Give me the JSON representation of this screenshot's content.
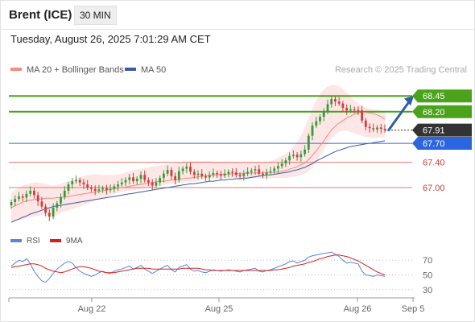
{
  "header": {
    "symbol": "Brent (ICE)",
    "timeframe": "30 MIN"
  },
  "datetime": "Tuesday, August 26, 2025 7:01:29 AM CET",
  "legend": {
    "ma20_label": "MA 20 + Bollinger Bands",
    "ma50_label": "MA 50",
    "credit": "Research © 2025 Trading Central"
  },
  "rsi_legend": {
    "rsi_label": "RSI",
    "ma_label": "9MA"
  },
  "colors": {
    "up": "#3a9a3a",
    "down": "#d23c3c",
    "ma20": "#f28b82",
    "bollinger": "#fde2e2",
    "ma50": "#3a5ba8",
    "resistance": "#4aa31a",
    "support_blue": "#2b66e0",
    "support_red": "#e8796f",
    "current": "#333333",
    "arrow": "#2d5fa8",
    "rsi": "#5b84d6",
    "rsi_ma": "#d62020"
  },
  "chart_data": [
    {
      "type": "candlestick",
      "x_dates": [
        "Aug 22",
        "Aug 25",
        "Aug 26",
        "Sep 5"
      ],
      "ylim": [
        66.35,
        68.72
      ],
      "levels": [
        {
          "value": 68.45,
          "label": "68.45",
          "kind": "resistance"
        },
        {
          "value": 68.2,
          "label": "68.20",
          "kind": "resistance"
        },
        {
          "value": 67.91,
          "label": "67.91",
          "kind": "current"
        },
        {
          "value": 67.7,
          "label": "67.70",
          "kind": "support-blue"
        },
        {
          "value": 67.4,
          "label": "67.40",
          "kind": "support-red"
        },
        {
          "value": 67.0,
          "label": "67.00",
          "kind": "support-red"
        }
      ],
      "candles_close": [
        66.77,
        66.82,
        66.86,
        66.84,
        66.9,
        66.95,
        66.88,
        66.78,
        66.7,
        66.6,
        66.54,
        66.68,
        66.75,
        66.85,
        66.95,
        67.05,
        67.1,
        67.12,
        67.08,
        67.05,
        67.0,
        66.98,
        66.95,
        66.97,
        66.99,
        66.96,
        66.98,
        67.02,
        67.05,
        67.08,
        67.12,
        67.16,
        67.1,
        67.14,
        67.2,
        67.12,
        67.08,
        67.03,
        67.08,
        67.15,
        67.22,
        67.28,
        67.18,
        67.12,
        67.26,
        67.3,
        67.33,
        67.25,
        67.2,
        67.22,
        67.18,
        67.16,
        67.2,
        67.23,
        67.21,
        67.19,
        67.22,
        67.25,
        67.24,
        67.2,
        67.18,
        67.22,
        67.25,
        67.27,
        67.29,
        67.22,
        67.2,
        67.24,
        67.26,
        67.3,
        67.34,
        67.38,
        67.43,
        67.5,
        67.52,
        67.48,
        67.53,
        67.6,
        67.82,
        67.98,
        68.05,
        68.12,
        68.2,
        68.32,
        68.4,
        68.36,
        68.33,
        68.26,
        68.22,
        68.24,
        68.23,
        68.22,
        68.06,
        67.96,
        67.94,
        67.92,
        67.95,
        67.93,
        67.91
      ],
      "ma20": [
        66.68,
        66.71,
        66.74,
        66.77,
        66.79,
        66.8,
        66.81,
        66.82,
        66.82,
        66.83,
        66.83,
        66.83,
        66.84,
        66.84,
        66.85,
        66.86,
        66.87,
        66.88,
        66.89,
        66.9,
        66.91,
        66.92,
        66.93,
        66.94,
        66.95,
        66.96,
        66.97,
        66.98,
        66.99,
        67.0,
        67.01,
        67.02,
        67.03,
        67.04,
        67.05,
        67.06,
        67.07,
        67.08,
        67.09,
        67.1,
        67.1,
        67.11,
        67.12,
        67.12,
        67.13,
        67.14,
        67.15,
        67.15,
        67.16,
        67.17,
        67.18,
        67.19,
        67.19,
        67.2,
        67.2,
        67.21,
        67.21,
        67.21,
        67.22,
        67.22,
        67.22,
        67.22,
        67.23,
        67.23,
        67.23,
        67.23,
        67.23,
        67.24,
        67.24,
        67.24,
        67.25,
        67.26,
        67.27,
        67.29,
        67.31,
        67.33,
        67.36,
        67.39,
        67.44,
        67.51,
        67.58,
        67.66,
        67.74,
        67.83,
        67.91,
        67.97,
        68.02,
        68.06,
        68.1,
        68.13,
        68.16,
        68.18,
        68.19,
        68.19,
        68.18,
        68.17,
        68.15,
        68.12,
        68.08
      ],
      "bb_upper": [
        66.92,
        66.96,
        67.0,
        67.03,
        67.05,
        67.07,
        67.08,
        67.08,
        67.07,
        67.06,
        67.04,
        67.03,
        67.04,
        67.06,
        67.08,
        67.1,
        67.12,
        67.14,
        67.16,
        67.18,
        67.2,
        67.21,
        67.21,
        67.21,
        67.2,
        67.2,
        67.2,
        67.2,
        67.21,
        67.22,
        67.24,
        67.26,
        67.28,
        67.29,
        67.3,
        67.31,
        67.32,
        67.33,
        67.34,
        67.35,
        67.36,
        67.37,
        67.38,
        67.39,
        67.4,
        67.41,
        67.42,
        67.42,
        67.42,
        67.42,
        67.42,
        67.42,
        67.42,
        67.41,
        67.41,
        67.4,
        67.4,
        67.4,
        67.4,
        67.4,
        67.4,
        67.4,
        67.4,
        67.4,
        67.4,
        67.4,
        67.4,
        67.41,
        67.42,
        67.44,
        67.47,
        67.5,
        67.53,
        67.58,
        67.65,
        67.72,
        67.82,
        67.95,
        68.1,
        68.25,
        68.38,
        68.48,
        68.55,
        68.6,
        68.62,
        68.62,
        68.6,
        68.56,
        68.5,
        68.44,
        68.38,
        68.33,
        68.3,
        68.27,
        68.25,
        68.24,
        68.23,
        68.22,
        68.2
      ],
      "bb_lower": [
        66.44,
        66.46,
        66.48,
        66.5,
        66.52,
        66.53,
        66.54,
        66.55,
        66.56,
        66.56,
        66.56,
        66.56,
        66.57,
        66.6,
        66.62,
        66.64,
        66.66,
        66.68,
        66.7,
        66.72,
        66.74,
        66.77,
        66.8,
        66.82,
        66.84,
        66.86,
        66.88,
        66.9,
        66.92,
        66.93,
        66.94,
        66.95,
        66.96,
        66.97,
        66.98,
        66.99,
        67.0,
        67.01,
        67.02,
        67.03,
        67.04,
        67.05,
        67.06,
        67.06,
        67.07,
        67.08,
        67.09,
        67.09,
        67.1,
        67.11,
        67.12,
        67.13,
        67.13,
        67.14,
        67.14,
        67.15,
        67.15,
        67.15,
        67.15,
        67.15,
        67.15,
        67.15,
        67.15,
        67.15,
        67.15,
        67.15,
        67.15,
        67.15,
        67.15,
        67.15,
        67.15,
        67.15,
        67.15,
        67.16,
        67.17,
        67.18,
        67.2,
        67.22,
        67.26,
        67.32,
        67.4,
        67.5,
        67.6,
        67.7,
        67.78,
        67.84,
        67.88,
        67.9,
        67.9,
        67.88,
        67.86,
        67.84,
        67.82,
        67.8,
        67.79,
        67.79,
        67.79,
        67.8,
        67.8
      ],
      "ma50": [
        66.45,
        66.48,
        66.5,
        66.53,
        66.55,
        66.58,
        66.6,
        66.62,
        66.64,
        66.66,
        66.68,
        66.7,
        66.71,
        66.72,
        66.73,
        66.74,
        66.75,
        66.76,
        66.77,
        66.78,
        66.79,
        66.8,
        66.81,
        66.82,
        66.83,
        66.84,
        66.85,
        66.86,
        66.87,
        66.88,
        66.89,
        66.9,
        66.91,
        66.92,
        66.93,
        66.94,
        66.95,
        66.96,
        66.97,
        66.98,
        66.99,
        67.0,
        67.01,
        67.02,
        67.03,
        67.04,
        67.05,
        67.06,
        67.06,
        67.07,
        67.08,
        67.09,
        67.1,
        67.1,
        67.11,
        67.12,
        67.12,
        67.13,
        67.13,
        67.14,
        67.14,
        67.15,
        67.15,
        67.16,
        67.17,
        67.18,
        67.19,
        67.2,
        67.2,
        67.21,
        67.22,
        67.23,
        67.24,
        67.25,
        67.27,
        67.28,
        67.3,
        67.32,
        67.35,
        67.38,
        67.42,
        67.45,
        67.48,
        67.51,
        67.54,
        67.57,
        67.59,
        67.61,
        67.63,
        67.65,
        67.66,
        67.67,
        67.68,
        67.69,
        67.7,
        67.71,
        67.72,
        67.73,
        67.74
      ]
    },
    {
      "type": "line",
      "name": "RSI",
      "yticks": [
        30,
        50,
        70
      ],
      "ylim": [
        20,
        80
      ],
      "series": [
        {
          "name": "RSI",
          "values": [
            62,
            66,
            70,
            68,
            72,
            65,
            55,
            48,
            42,
            40,
            45,
            52,
            58,
            62,
            66,
            68,
            66,
            60,
            55,
            52,
            50,
            48,
            50,
            53,
            55,
            53,
            52,
            55,
            57,
            58,
            60,
            62,
            58,
            60,
            63,
            58,
            55,
            52,
            55,
            58,
            61,
            63,
            57,
            54,
            60,
            62,
            64,
            58,
            55,
            56,
            54,
            53,
            55,
            57,
            56,
            55,
            56,
            57,
            56,
            55,
            54,
            56,
            57,
            58,
            59,
            55,
            54,
            56,
            57,
            59,
            61,
            63,
            65,
            68,
            69,
            66,
            68,
            70,
            74,
            76,
            77,
            78,
            79,
            80,
            81,
            78,
            75,
            70,
            66,
            67,
            66,
            65,
            55,
            50,
            49,
            48,
            50,
            49,
            48
          ]
        },
        {
          "name": "9MA",
          "values": [
            60,
            61,
            62,
            63,
            64,
            65,
            65,
            64,
            62,
            59,
            57,
            55,
            54,
            53,
            54,
            56,
            58,
            60,
            61,
            61,
            60,
            59,
            57,
            55,
            54,
            53,
            53,
            53,
            54,
            55,
            56,
            57,
            58,
            59,
            59,
            59,
            59,
            58,
            58,
            58,
            58,
            58,
            58,
            58,
            58,
            59,
            59,
            59,
            59,
            59,
            58,
            57,
            57,
            56,
            56,
            56,
            56,
            56,
            56,
            56,
            56,
            56,
            56,
            56,
            56,
            56,
            56,
            56,
            56,
            57,
            57,
            58,
            59,
            60,
            62,
            63,
            64,
            65,
            67,
            68,
            70,
            72,
            73,
            75,
            76,
            77,
            77,
            76,
            75,
            73,
            71,
            69,
            66,
            63,
            60,
            57,
            54,
            52,
            50
          ]
        }
      ]
    }
  ]
}
